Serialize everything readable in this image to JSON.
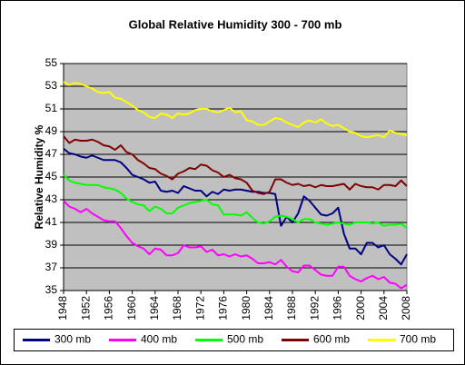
{
  "chart_data": {
    "type": "line",
    "title": "Global Relative Humidity 300 - 700 mb",
    "y_label": "Relative Humidity %",
    "x": [
      1948,
      1949,
      1950,
      1951,
      1952,
      1953,
      1954,
      1955,
      1956,
      1957,
      1958,
      1959,
      1960,
      1961,
      1962,
      1963,
      1964,
      1965,
      1966,
      1967,
      1968,
      1969,
      1970,
      1971,
      1972,
      1973,
      1974,
      1975,
      1976,
      1977,
      1978,
      1979,
      1980,
      1981,
      1982,
      1983,
      1984,
      1985,
      1986,
      1987,
      1988,
      1989,
      1990,
      1991,
      1992,
      1993,
      1994,
      1995,
      1996,
      1997,
      1998,
      1999,
      2000,
      2001,
      2002,
      2003,
      2004,
      2005,
      2006,
      2007,
      2008
    ],
    "series": [
      {
        "name": "300 mb",
        "color": "#000080",
        "values": [
          47.5,
          47.1,
          47.0,
          46.8,
          46.7,
          46.9,
          46.7,
          46.5,
          46.5,
          46.5,
          46.3,
          45.8,
          45.2,
          45.0,
          44.8,
          44.5,
          44.6,
          43.8,
          43.7,
          43.8,
          43.6,
          44.2,
          44.0,
          43.8,
          43.8,
          43.3,
          43.7,
          43.5,
          43.9,
          43.8,
          43.9,
          43.9,
          43.8,
          43.7,
          43.7,
          43.6,
          43.6,
          43.5,
          40.7,
          41.5,
          41.0,
          41.8,
          43.3,
          42.9,
          42.3,
          41.7,
          41.6,
          41.8,
          42.3,
          40.0,
          38.7,
          38.7,
          38.2,
          39.2,
          39.2,
          38.8,
          39.0,
          38.2,
          37.8,
          37.3,
          38.2
        ]
      },
      {
        "name": "400 mb",
        "color": "#ff00ff",
        "values": [
          42.9,
          42.4,
          42.2,
          41.9,
          42.2,
          41.8,
          41.5,
          41.2,
          41.1,
          41.1,
          40.5,
          39.8,
          39.2,
          38.9,
          38.7,
          38.2,
          38.7,
          38.6,
          38.1,
          38.1,
          38.3,
          39.0,
          38.8,
          38.8,
          38.9,
          38.4,
          38.6,
          38.1,
          38.2,
          38.0,
          38.2,
          38.0,
          38.1,
          37.8,
          37.4,
          37.4,
          37.5,
          37.3,
          37.7,
          37.1,
          36.7,
          36.6,
          37.2,
          37.2,
          36.8,
          36.4,
          36.3,
          36.3,
          37.1,
          37.1,
          36.3,
          36.0,
          35.8,
          36.1,
          36.3,
          36.0,
          36.2,
          35.7,
          35.6,
          35.2,
          35.5
        ]
      },
      {
        "name": "500 mb",
        "color": "#00ff00",
        "values": [
          45.2,
          44.7,
          44.5,
          44.4,
          44.3,
          44.3,
          44.3,
          44.1,
          44.0,
          43.9,
          43.6,
          43.1,
          42.8,
          42.6,
          42.5,
          42.0,
          42.4,
          42.2,
          41.8,
          41.8,
          42.3,
          42.5,
          42.7,
          42.8,
          42.9,
          43.0,
          42.6,
          42.5,
          41.7,
          41.7,
          41.7,
          41.6,
          41.9,
          41.4,
          41.0,
          40.9,
          41.1,
          41.5,
          41.6,
          41.5,
          41.3,
          41.0,
          41.3,
          41.3,
          41.0,
          40.9,
          40.8,
          40.9,
          41.0,
          40.9,
          40.8,
          41.0,
          41.0,
          41.0,
          40.9,
          41.0,
          40.7,
          40.8,
          40.8,
          40.9,
          40.5
        ]
      },
      {
        "name": "600 mb",
        "color": "#800000",
        "values": [
          48.6,
          48.0,
          48.3,
          48.2,
          48.2,
          48.3,
          48.1,
          47.8,
          47.7,
          47.4,
          47.8,
          47.2,
          47.0,
          46.5,
          46.2,
          45.8,
          45.7,
          45.3,
          45.1,
          44.8,
          45.3,
          45.5,
          45.8,
          45.7,
          46.1,
          46.0,
          45.6,
          45.4,
          45.0,
          45.2,
          44.9,
          44.8,
          44.5,
          43.8,
          43.6,
          43.5,
          43.7,
          44.8,
          44.8,
          44.5,
          44.3,
          44.4,
          44.2,
          44.3,
          44.1,
          44.3,
          44.2,
          44.2,
          44.3,
          44.4,
          43.9,
          44.4,
          44.2,
          44.1,
          44.1,
          43.9,
          44.3,
          44.3,
          44.2,
          44.7,
          44.2
        ]
      },
      {
        "name": "700 mb",
        "color": "#ffff00",
        "values": [
          53.4,
          53.1,
          53.3,
          53.2,
          53.0,
          52.8,
          52.5,
          52.4,
          52.5,
          52.0,
          51.9,
          51.6,
          51.3,
          50.9,
          50.7,
          50.3,
          50.2,
          50.6,
          50.5,
          50.2,
          50.6,
          50.5,
          50.6,
          50.9,
          51.0,
          51.0,
          50.8,
          50.7,
          50.9,
          51.1,
          50.7,
          50.8,
          50.0,
          49.9,
          49.6,
          49.6,
          49.9,
          50.2,
          50.1,
          49.8,
          49.6,
          49.4,
          49.8,
          50.0,
          49.8,
          50.1,
          49.7,
          49.5,
          49.6,
          49.3,
          49.0,
          48.9,
          48.6,
          48.5,
          48.6,
          48.7,
          48.5,
          49.1,
          48.9,
          48.8,
          48.7
        ]
      }
    ],
    "xlim": [
      1948,
      2008
    ],
    "xticks": [
      1948,
      1952,
      1956,
      1960,
      1964,
      1968,
      1972,
      1976,
      1980,
      1984,
      1988,
      1992,
      1996,
      2000,
      2004,
      2008
    ],
    "ylim": [
      35,
      55
    ],
    "yticks": [
      35,
      37,
      39,
      41,
      43,
      45,
      47,
      49,
      51,
      53,
      55
    ],
    "grid": true,
    "legend": "bottom"
  }
}
